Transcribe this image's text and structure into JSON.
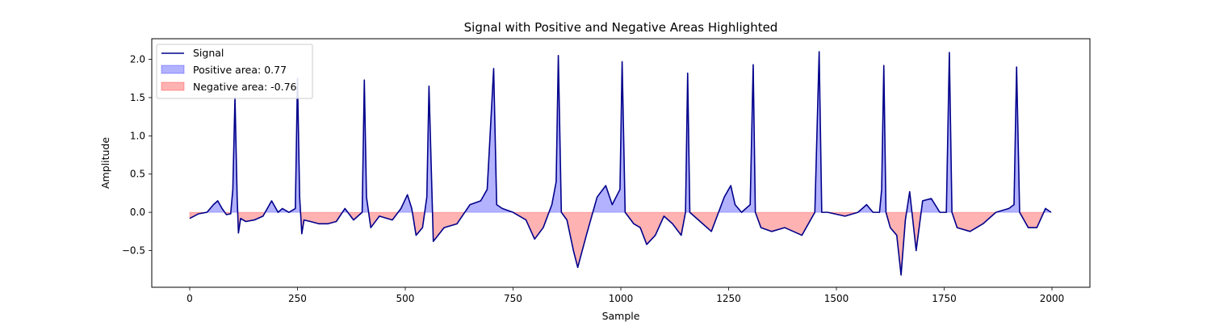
{
  "chart_data": {
    "type": "line",
    "title": "Signal with Positive and Negative Areas Highlighted",
    "xlabel": "Sample",
    "ylabel": "Amplitude",
    "xlim": [
      -88,
      2088
    ],
    "ylim": [
      -0.98,
      2.27
    ],
    "xticks": [
      0,
      250,
      500,
      750,
      1000,
      1250,
      1500,
      1750,
      2000
    ],
    "xtick_labels": [
      "0",
      "250",
      "500",
      "750",
      "1000",
      "1250",
      "1500",
      "1750",
      "2000"
    ],
    "yticks": [
      -0.5,
      0.0,
      0.5,
      1.0,
      1.5,
      2.0
    ],
    "ytick_labels": [
      "−0.5",
      "0.0",
      "0.5",
      "1.0",
      "1.5",
      "2.0"
    ],
    "grid": false,
    "legend_position": "top-left",
    "legend": [
      {
        "label": "Signal",
        "kind": "line",
        "color": "#00008b"
      },
      {
        "label": "Positive area: 0.77",
        "kind": "fill",
        "color": "#0000ff"
      },
      {
        "label": "Negative area: -0.76",
        "kind": "fill",
        "color": "#ff0000"
      }
    ],
    "series": [
      {
        "name": "Signal",
        "color": "#00008b",
        "positive_fill_color": "#0000ff",
        "negative_fill_color": "#ff0000",
        "x": [
          0,
          20,
          40,
          55,
          65,
          75,
          85,
          95,
          100,
          105,
          110,
          113,
          118,
          130,
          150,
          170,
          190,
          205,
          215,
          230,
          245,
          250,
          255,
          260,
          265,
          280,
          300,
          320,
          340,
          360,
          380,
          400,
          405,
          410,
          420,
          440,
          470,
          490,
          505,
          515,
          525,
          540,
          550,
          555,
          565,
          590,
          620,
          650,
          675,
          690,
          705,
          712,
          725,
          750,
          780,
          800,
          820,
          840,
          850,
          855,
          862,
          875,
          890,
          900,
          920,
          945,
          965,
          980,
          998,
          1003,
          1010,
          1030,
          1045,
          1060,
          1080,
          1100,
          1120,
          1140,
          1150,
          1155,
          1160,
          1180,
          1210,
          1240,
          1255,
          1265,
          1280,
          1300,
          1307,
          1312,
          1325,
          1350,
          1380,
          1420,
          1450,
          1460,
          1466,
          1480,
          1520,
          1550,
          1570,
          1585,
          1600,
          1605,
          1610,
          1615,
          1625,
          1640,
          1650,
          1660,
          1670,
          1685,
          1700,
          1720,
          1740,
          1755,
          1762,
          1768,
          1780,
          1810,
          1840,
          1870,
          1900,
          1912,
          1918,
          1925,
          1945,
          1965,
          1985,
          1998
        ],
        "y": [
          -0.08,
          -0.02,
          0.0,
          0.1,
          0.15,
          0.05,
          -0.03,
          -0.02,
          0.3,
          1.5,
          0.2,
          -0.27,
          -0.08,
          -0.12,
          -0.1,
          -0.05,
          0.15,
          0.0,
          0.05,
          0.0,
          0.05,
          1.75,
          0.2,
          -0.28,
          -0.1,
          -0.12,
          -0.15,
          -0.15,
          -0.12,
          0.05,
          -0.1,
          0.0,
          1.73,
          0.2,
          -0.2,
          -0.05,
          -0.1,
          0.05,
          0.23,
          0.05,
          -0.3,
          -0.2,
          0.2,
          1.65,
          -0.38,
          -0.2,
          -0.15,
          0.1,
          0.15,
          0.3,
          1.88,
          0.1,
          0.05,
          0.0,
          -0.1,
          -0.35,
          -0.2,
          0.1,
          0.4,
          2.05,
          0.0,
          -0.1,
          -0.5,
          -0.72,
          -0.3,
          0.2,
          0.35,
          0.1,
          0.3,
          1.97,
          0.0,
          -0.15,
          -0.2,
          -0.42,
          -0.3,
          -0.05,
          -0.15,
          -0.3,
          0.0,
          1.82,
          0.0,
          -0.1,
          -0.25,
          0.2,
          0.35,
          0.1,
          0.0,
          0.1,
          1.93,
          0.0,
          -0.2,
          -0.25,
          -0.2,
          -0.3,
          0.0,
          2.1,
          0.0,
          0.0,
          -0.05,
          0.0,
          0.1,
          0.0,
          0.0,
          0.3,
          1.92,
          0.0,
          -0.2,
          -0.3,
          -0.82,
          -0.1,
          0.27,
          -0.5,
          0.15,
          0.18,
          0.0,
          0.0,
          2.09,
          0.0,
          -0.2,
          -0.25,
          -0.15,
          0.0,
          0.05,
          0.1,
          1.9,
          0.0,
          -0.2,
          -0.2,
          0.05,
          0.0
        ]
      }
    ]
  }
}
